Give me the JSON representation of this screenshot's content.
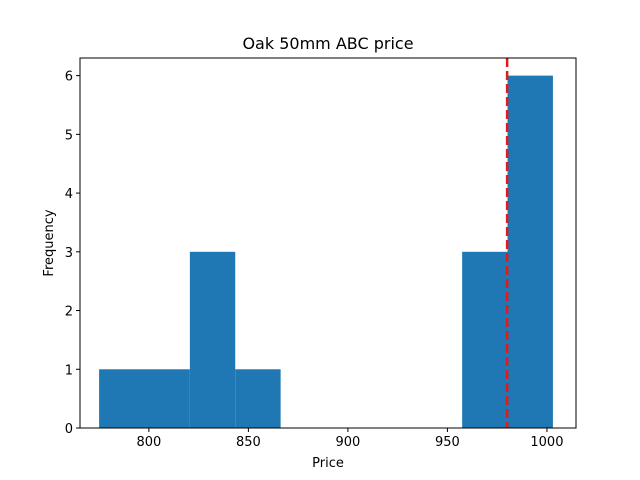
{
  "chart_data": {
    "type": "bar",
    "subtype": "histogram",
    "title": "Oak 50mm ABC price",
    "xlabel": "Price",
    "ylabel": "Frequency",
    "xlim": [
      765.4,
      1014.6
    ],
    "ylim": [
      0,
      6.3
    ],
    "xticks": [
      800,
      850,
      900,
      950,
      1000
    ],
    "yticks": [
      0,
      1,
      2,
      3,
      4,
      5,
      6
    ],
    "bins": [
      {
        "start": 775.0,
        "end": 797.8,
        "count": 1
      },
      {
        "start": 797.8,
        "end": 820.6,
        "count": 1
      },
      {
        "start": 820.6,
        "end": 843.4,
        "count": 3
      },
      {
        "start": 843.4,
        "end": 866.2,
        "count": 1
      },
      {
        "start": 866.2,
        "end": 889.0,
        "count": 0
      },
      {
        "start": 889.0,
        "end": 911.8,
        "count": 0
      },
      {
        "start": 911.8,
        "end": 934.6,
        "count": 0
      },
      {
        "start": 934.6,
        "end": 957.4,
        "count": 0
      },
      {
        "start": 957.4,
        "end": 980.2,
        "count": 3
      },
      {
        "start": 980.2,
        "end": 1003.0,
        "count": 6
      }
    ],
    "reference_line": {
      "x": 980,
      "color": "#e31a1c",
      "style": "dashed"
    },
    "bar_color": "#1f77b4",
    "grid": false,
    "legend": "none"
  }
}
